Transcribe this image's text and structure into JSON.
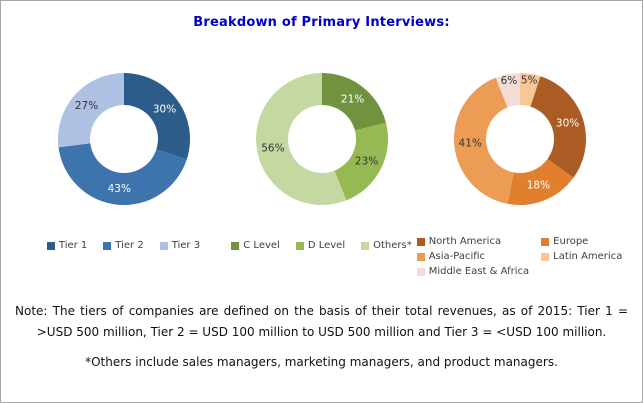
{
  "title": "Breakdown of Primary Interviews:",
  "colors": {
    "title_accent": "#0000CC",
    "border": "#A6A6A6",
    "body_text": "#111111",
    "legend_text": "#404040"
  },
  "chart_data": [
    {
      "type": "pie",
      "subtype": "donut",
      "name": "company-tiers",
      "legend_position": "bottom",
      "start_angle": 0,
      "series": [
        {
          "name": "Tier 1",
          "value": 30,
          "color": "#2B5C8A",
          "label_color": "#FFFFFF"
        },
        {
          "name": "Tier 2",
          "value": 43,
          "color": "#3D74AD",
          "label_color": "#FFFFFF"
        },
        {
          "name": "Tier 3",
          "value": 27,
          "color": "#AFC1E3",
          "label_color": "#333333"
        }
      ]
    },
    {
      "type": "pie",
      "subtype": "donut",
      "name": "designations",
      "legend_position": "bottom",
      "start_angle": 0,
      "series": [
        {
          "name": "C Level",
          "value": 21,
          "color": "#71923E",
          "label_color": "#FFFFFF"
        },
        {
          "name": "D Level",
          "value": 23,
          "color": "#97B954",
          "label_color": "#333333"
        },
        {
          "name": "Others*",
          "value": 56,
          "color": "#C6D8A2",
          "label_color": "#333333"
        }
      ]
    },
    {
      "type": "pie",
      "subtype": "donut",
      "name": "regions",
      "legend_position": "bottom",
      "start_angle": 0,
      "draw_order": [
        3,
        0,
        1,
        2,
        4
      ],
      "series": [
        {
          "name": "North America",
          "value": 30,
          "color": "#AA5C24",
          "label_color": "#FFFFFF"
        },
        {
          "name": "Europe",
          "value": 18,
          "color": "#E0802F",
          "label_color": "#FFFFFF"
        },
        {
          "name": "Asia-Pacific",
          "value": 41,
          "color": "#EC9C55",
          "label_color": "#333333"
        },
        {
          "name": "Latin America",
          "value": 5,
          "color": "#F7C795",
          "label_color": "#333333"
        },
        {
          "name": "Middle East & Africa",
          "value": 6,
          "color": "#F4DCD6",
          "label_color": "#333333"
        }
      ]
    }
  ],
  "notes": {
    "tiers": "Note: The tiers of companies are defined on the basis of their total revenues, as of 2015: Tier 1 = >USD 500 million, Tier 2 = USD 100 million to USD 500 million and Tier 3 = <USD 100 million.",
    "others": "*Others include sales managers, marketing managers, and product managers."
  }
}
